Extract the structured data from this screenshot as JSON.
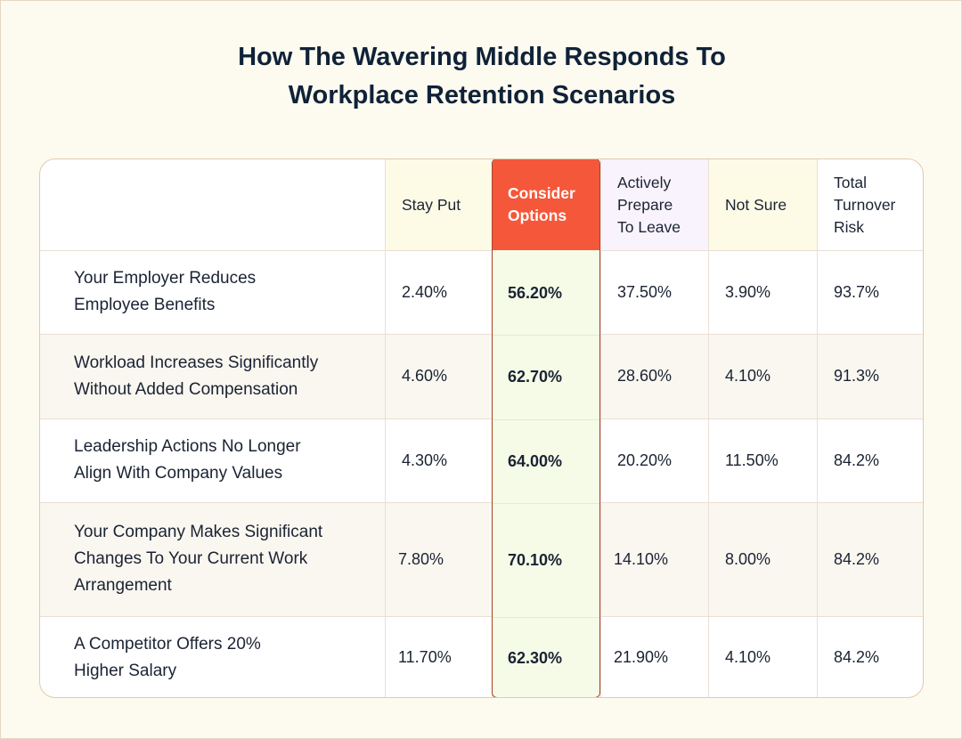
{
  "title_lines": [
    "How The Wavering Middle Responds To",
    "Workplace Retention Scenarios"
  ],
  "colors": {
    "page_bg": "#fdfbf0",
    "header_stay": "#fdfbe6",
    "header_consider": "#f5573a",
    "header_prepare": "#f8f3fc",
    "header_notsure": "#fdfbe6",
    "highlight_column": "#f6fbe8",
    "row_alt": "#faf7f0",
    "border": "#e3c9ae"
  },
  "chart_data": {
    "type": "table",
    "title": "How The Wavering Middle Responds To Workplace Retention Scenarios",
    "columns": [
      "Stay Put",
      "Consider Options",
      "Actively Prepare To Leave",
      "Not Sure",
      "Total Turnover Risk"
    ],
    "header_lines": [
      [
        "Stay Put"
      ],
      [
        "Consider",
        "Options"
      ],
      [
        "Actively",
        "Prepare",
        "To Leave"
      ],
      [
        "Not Sure"
      ],
      [
        "Total",
        "Turnover",
        "Risk"
      ]
    ],
    "highlighted_column": "Consider Options",
    "rows": [
      {
        "label_lines": [
          "Your Employer Reduces",
          "Employee Benefits"
        ],
        "values": [
          "2.40%",
          "56.20%",
          "37.50%",
          "3.90%",
          "93.7%"
        ]
      },
      {
        "label_lines": [
          "Workload Increases Significantly",
          "Without Added Compensation"
        ],
        "values": [
          "4.60%",
          "62.70%",
          "28.60%",
          "4.10%",
          "91.3%"
        ]
      },
      {
        "label_lines": [
          "Leadership Actions No Longer",
          "Align With Company Values"
        ],
        "values": [
          "4.30%",
          "64.00%",
          "20.20%",
          "11.50%",
          "84.2%"
        ]
      },
      {
        "label_lines": [
          "Your Company Makes Significant",
          "Changes To Your Current Work",
          "Arrangement"
        ],
        "values": [
          "7.80%",
          "70.10%",
          "14.10%",
          "8.00%",
          "84.2%"
        ]
      },
      {
        "label_lines": [
          "A Competitor Offers 20%",
          "Higher Salary"
        ],
        "values": [
          "11.70%",
          "62.30%",
          "21.90%",
          "4.10%",
          "84.2%"
        ]
      }
    ]
  }
}
